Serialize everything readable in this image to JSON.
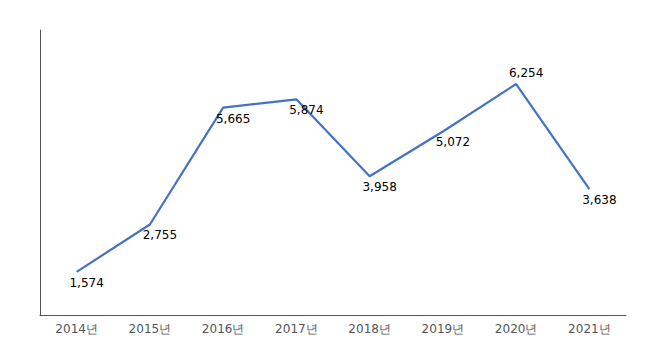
{
  "chart_data": {
    "type": "line",
    "categories": [
      "2014년",
      "2015년",
      "2016년",
      "2017년",
      "2018년",
      "2019년",
      "2020년",
      "2021년"
    ],
    "values": [
      1574,
      2755,
      5665,
      5874,
      3958,
      5072,
      6254,
      3638
    ],
    "value_labels": [
      "1,574",
      "2,755",
      "5,665",
      "5,874",
      "3,958",
      "5,072",
      "6,254",
      "3,638"
    ],
    "color": "#4472C4",
    "ylim": [
      500,
      7600
    ],
    "grid": false,
    "data_labels": true,
    "tick_labels": "x"
  }
}
